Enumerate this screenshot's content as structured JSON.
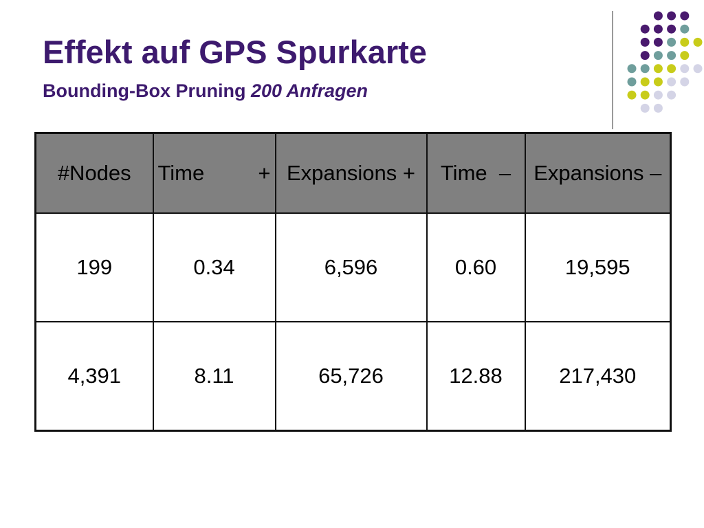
{
  "slide": {
    "title": "Effekt auf GPS Spurkarte",
    "subtitle_main": "Bounding-Box Pruning ",
    "subtitle_italic": "200 Anfragen"
  },
  "decoration": {
    "dot_colors": {
      "purple": "#4a1a6e",
      "teal": "#6f9e9c",
      "lime": "#c8cc1a",
      "lavender": "#d4d4e6"
    }
  },
  "table": {
    "headers": {
      "nodes": "#Nodes",
      "time_plus_label": "Time",
      "time_plus_sign": "+",
      "expansions_plus": "Expansions +",
      "time_minus": "Time  –",
      "expansions_minus": "Expansions –"
    },
    "rows": [
      [
        "199",
        "0.34",
        "6,596",
        "0.60",
        "19,595"
      ],
      [
        "4,391",
        "8.11",
        "65,726",
        "12.88",
        "217,430"
      ]
    ]
  }
}
